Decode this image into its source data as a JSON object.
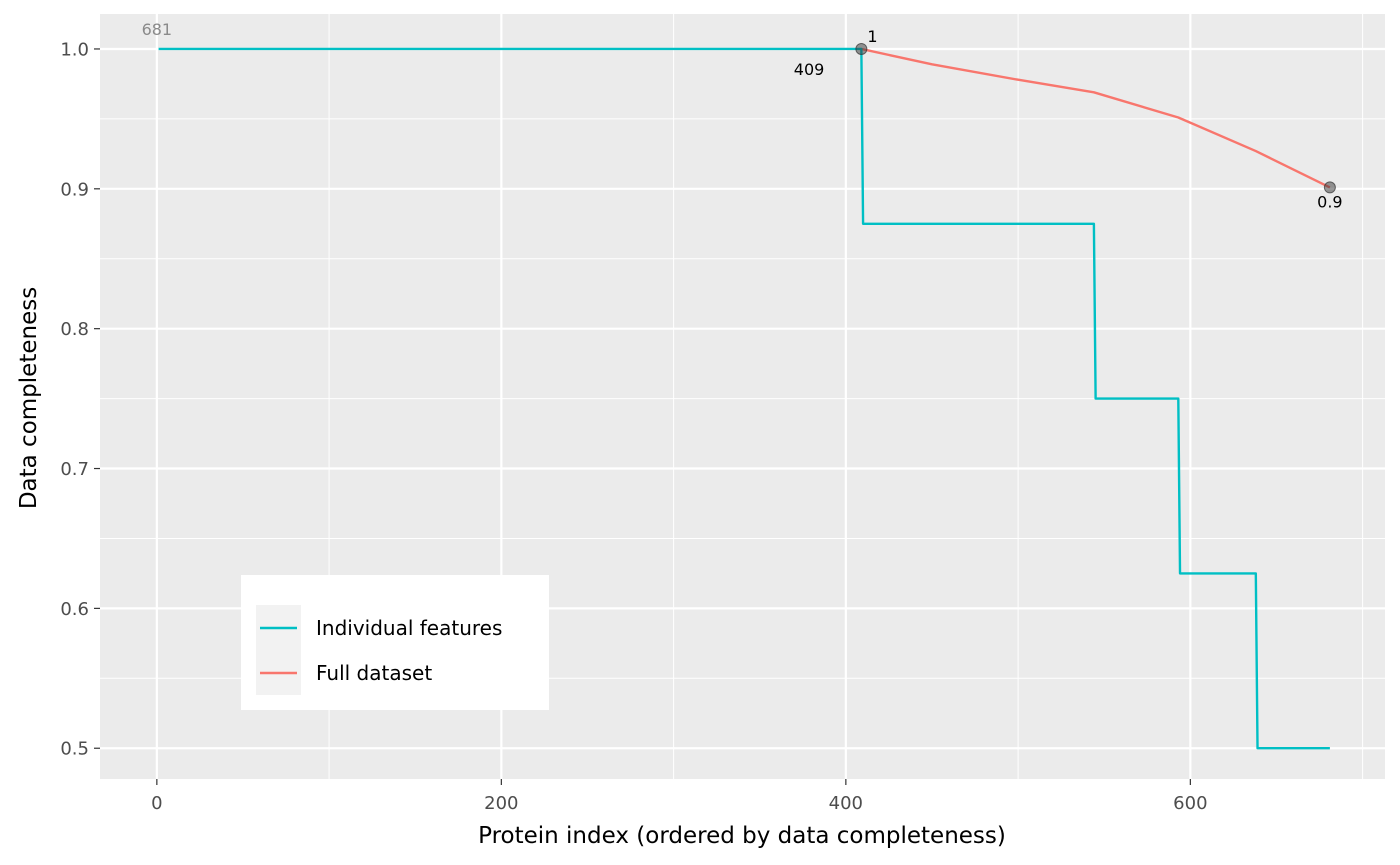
{
  "chart_data": {
    "type": "line",
    "xlabel": "Protein index (ordered by data completeness)",
    "ylabel": "Data completeness",
    "xlim": [
      -33,
      713
    ],
    "ylim": [
      0.478,
      1.025
    ],
    "x_ticks": [
      0,
      200,
      400,
      600
    ],
    "y_ticks": [
      0.5,
      0.6,
      0.7,
      0.8,
      0.9,
      1.0
    ],
    "x_tick_labels": [
      "0",
      "200",
      "400",
      "600"
    ],
    "y_tick_labels": [
      "0.5",
      "0.6",
      "0.7",
      "0.8",
      "0.9",
      "1.0"
    ],
    "grid": true,
    "legend_position": "bottom-left inside",
    "series": [
      {
        "name": "Individual features",
        "color": "#00BFC4",
        "step": true,
        "points": [
          [
            1,
            1.0
          ],
          [
            409,
            1.0
          ],
          [
            410,
            0.875
          ],
          [
            544,
            0.875
          ],
          [
            545,
            0.75
          ],
          [
            593,
            0.75
          ],
          [
            594,
            0.625
          ],
          [
            638,
            0.625
          ],
          [
            639,
            0.5
          ],
          [
            681,
            0.5
          ]
        ]
      },
      {
        "name": "Full dataset",
        "color": "#F8766D",
        "step": false,
        "points": [
          [
            409,
            1.0
          ],
          [
            450,
            0.989
          ],
          [
            500,
            0.978
          ],
          [
            544,
            0.969
          ],
          [
            593,
            0.951
          ],
          [
            638,
            0.927
          ],
          [
            681,
            0.901
          ]
        ]
      }
    ],
    "highlight_points": [
      [
        409,
        1.0
      ],
      [
        681,
        0.901
      ]
    ],
    "annotations": [
      {
        "text": "681",
        "x": 0,
        "y": 1.0,
        "color": "grey"
      },
      {
        "text": "1",
        "x": 409,
        "y": 1.0,
        "color": "black"
      },
      {
        "text": "409",
        "x": 409,
        "y": 1.0,
        "color": "black"
      },
      {
        "text": "0.9",
        "x": 681,
        "y": 0.901,
        "color": "black"
      }
    ]
  }
}
